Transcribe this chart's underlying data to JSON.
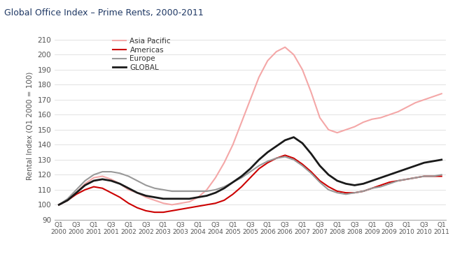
{
  "title": "Global Office Index – Prime Rents, 2000-2011",
  "ylabel": "Rental Index (Q1 2000 = 100)",
  "ylim": [
    90,
    215
  ],
  "yticks": [
    90,
    100,
    110,
    120,
    130,
    140,
    150,
    160,
    170,
    180,
    190,
    200,
    210
  ],
  "background_color": "#ffffff",
  "title_color": "#1f3864",
  "series": {
    "Asia Pacific": {
      "color": "#f4a7a7",
      "linewidth": 1.5,
      "values": [
        100,
        103,
        108,
        114,
        118,
        119,
        117,
        114,
        110,
        108,
        105,
        103,
        101,
        100,
        101,
        102,
        105,
        110,
        118,
        128,
        140,
        155,
        170,
        185,
        196,
        202,
        205,
        200,
        190,
        175,
        158,
        150,
        148,
        150,
        152,
        155,
        157,
        158,
        160,
        162,
        165,
        168,
        170,
        172,
        174
      ]
    },
    "Americas": {
      "color": "#cc0000",
      "linewidth": 1.5,
      "values": [
        100,
        103,
        107,
        110,
        112,
        111,
        108,
        105,
        101,
        98,
        96,
        95,
        95,
        96,
        97,
        98,
        99,
        100,
        101,
        103,
        107,
        112,
        118,
        124,
        128,
        131,
        133,
        131,
        127,
        122,
        116,
        112,
        109,
        108,
        108,
        109,
        111,
        113,
        115,
        116,
        117,
        118,
        119,
        119,
        119
      ]
    },
    "Europe": {
      "color": "#999999",
      "linewidth": 1.5,
      "values": [
        100,
        104,
        110,
        116,
        120,
        122,
        122,
        121,
        119,
        116,
        113,
        111,
        110,
        109,
        109,
        109,
        109,
        109,
        110,
        112,
        115,
        118,
        122,
        126,
        129,
        131,
        132,
        130,
        126,
        121,
        115,
        110,
        108,
        107,
        108,
        109,
        111,
        112,
        114,
        116,
        117,
        118,
        119,
        119,
        120
      ]
    },
    "GLOBAL": {
      "color": "#1a1a1a",
      "linewidth": 2.0,
      "values": [
        100,
        103,
        108,
        113,
        116,
        117,
        116,
        114,
        111,
        108,
        106,
        105,
        104,
        104,
        104,
        104,
        105,
        106,
        108,
        111,
        115,
        119,
        124,
        130,
        135,
        139,
        143,
        145,
        141,
        134,
        126,
        120,
        116,
        114,
        113,
        114,
        116,
        118,
        120,
        122,
        124,
        126,
        128,
        129,
        130
      ]
    }
  },
  "x_tick_indices": [
    0,
    2,
    4,
    6,
    8,
    10,
    12,
    14,
    16,
    18,
    20,
    22,
    24,
    26,
    28,
    30,
    32,
    34,
    36,
    38,
    40,
    42,
    44
  ],
  "x_tick_labels": [
    "Q1\n2000",
    "Q3\n2000",
    "Q1\n2001",
    "Q3\n2001",
    "Q1\n2002",
    "Q3\n2002",
    "Q1\n2003",
    "Q3\n2003",
    "Q1\n2004",
    "Q3\n2004",
    "Q1\n2005",
    "Q3\n2005",
    "Q1\n2006",
    "Q3\n2006",
    "Q1\n2007",
    "Q3\n2007",
    "Q1\n2008",
    "Q3\n2008",
    "Q1\n2009",
    "Q3\n2009",
    "Q1\n2010",
    "Q3\n2010",
    "Q1\n2011"
  ],
  "legend_order": [
    "Asia Pacific",
    "Americas",
    "Europe",
    "GLOBAL"
  ]
}
